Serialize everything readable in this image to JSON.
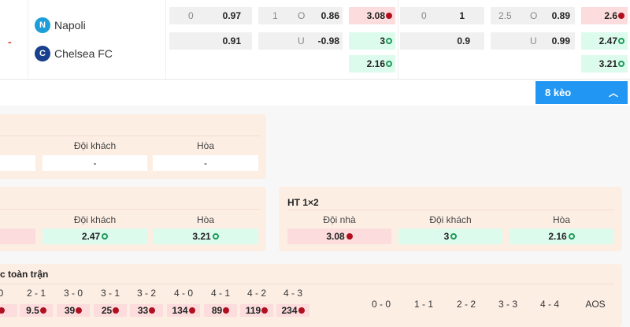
{
  "match": {
    "status": "-",
    "home": "Napoli",
    "away": "Chelsea FC"
  },
  "odds_ft": {
    "handicap": {
      "line": "0",
      "home": "0.97",
      "away": "0.91"
    },
    "overunder": {
      "line": "1",
      "over_label": "O",
      "over": "0.86",
      "under_label": "U",
      "under": "-0.98"
    },
    "x12": [
      {
        "value": "3.08",
        "trend": "down"
      },
      {
        "value": "3",
        "trend": "up"
      },
      {
        "value": "2.16",
        "trend": "up"
      }
    ]
  },
  "odds_2": {
    "handicap": {
      "line": "0",
      "home": "1",
      "away": "0.9"
    },
    "overunder": {
      "line": "2.5",
      "over_label": "O",
      "over": "0.89",
      "under_label": "U",
      "under": "0.99"
    },
    "x12": [
      {
        "value": "2.6",
        "trend": "down"
      },
      {
        "value": "2.47",
        "trend": "up"
      },
      {
        "value": "3.21",
        "trend": "up"
      }
    ]
  },
  "more_button": "8 kèo",
  "panel1": {
    "labels": [
      "Đội khách",
      "Hòa"
    ],
    "values": [
      "-",
      "-"
    ]
  },
  "panel2": {
    "labels": [
      "Đội khách",
      "Hòa"
    ],
    "values": [
      "2.47",
      "3.21"
    ]
  },
  "ht12": {
    "title": "HT 1×2",
    "labels": [
      "Đội nhà",
      "Đội khách",
      "Hòa"
    ],
    "values": [
      "3.08",
      "3",
      "2.16"
    ]
  },
  "correct_score": {
    "title": "c toàn trận",
    "scores": [
      "0",
      "2 - 1",
      "3 - 0",
      "3 - 1",
      "3 - 2",
      "4 - 0",
      "4 - 1",
      "4 - 2",
      "4 - 3"
    ],
    "values": [
      "",
      "9.5",
      "39",
      "25",
      "33",
      "134",
      "89",
      "119",
      "234"
    ],
    "draws": [
      "0 - 0",
      "1 - 1",
      "2 - 2",
      "3 - 3",
      "4 - 4",
      "AOS"
    ]
  },
  "colors": {
    "accent": "#2196f3",
    "up": "#1e9a5a",
    "down": "#b01020",
    "panel": "#fdeee4"
  }
}
